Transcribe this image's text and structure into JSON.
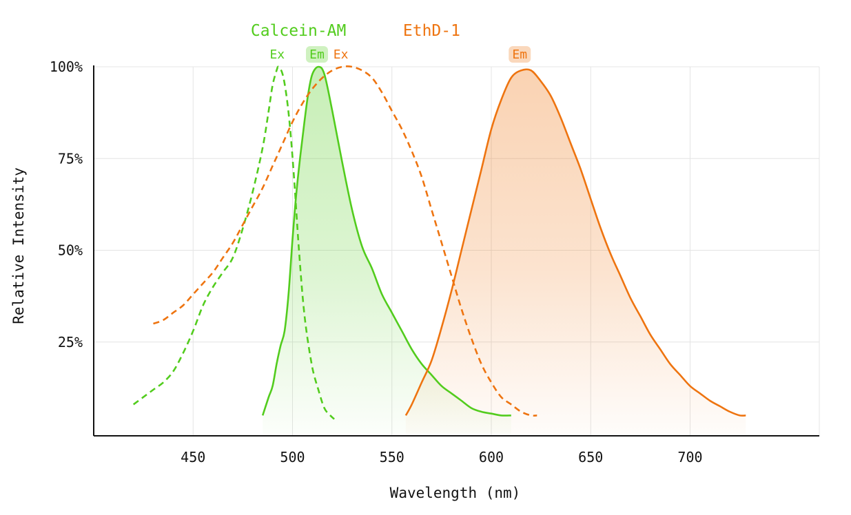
{
  "chart_data": {
    "type": "line",
    "xlabel": "Wavelength (nm)",
    "ylabel": "Relative Intensity",
    "xlim": [
      400,
      765
    ],
    "ylim": [
      0,
      100
    ],
    "x_ticks": [
      450,
      500,
      550,
      600,
      650,
      700
    ],
    "y_ticks": [
      25,
      50,
      75,
      100
    ],
    "y_tick_labels": [
      "25%",
      "50%",
      "75%",
      "100%"
    ],
    "grid": true,
    "dyes": [
      {
        "name": "Calcein-AM",
        "color": "#52cc1d"
      },
      {
        "name": "EthD-1",
        "color": "#ee7410"
      }
    ],
    "series": [
      {
        "dye": "Calcein-AM",
        "label": "Ex",
        "label_highlight": false,
        "color": "#52cc1d",
        "style": "dashed",
        "filled": false,
        "points": [
          [
            420,
            8
          ],
          [
            425,
            10
          ],
          [
            430,
            12
          ],
          [
            435,
            14
          ],
          [
            440,
            17
          ],
          [
            445,
            22
          ],
          [
            450,
            28
          ],
          [
            455,
            35
          ],
          [
            460,
            40
          ],
          [
            465,
            44
          ],
          [
            470,
            48
          ],
          [
            475,
            56
          ],
          [
            480,
            66
          ],
          [
            485,
            78
          ],
          [
            488,
            88
          ],
          [
            490,
            95
          ],
          [
            492,
            99
          ],
          [
            493,
            100
          ],
          [
            495,
            98
          ],
          [
            497,
            92
          ],
          [
            499,
            82
          ],
          [
            501,
            68
          ],
          [
            503,
            52
          ],
          [
            505,
            38
          ],
          [
            507,
            28
          ],
          [
            510,
            18
          ],
          [
            513,
            12
          ],
          [
            516,
            7
          ],
          [
            519,
            5
          ],
          [
            521,
            4
          ]
        ]
      },
      {
        "dye": "Calcein-AM",
        "label": "Em",
        "label_highlight": true,
        "color": "#52cc1d",
        "style": "solid",
        "filled": true,
        "points": [
          [
            485,
            5
          ],
          [
            488,
            10
          ],
          [
            490,
            13
          ],
          [
            492,
            19
          ],
          [
            494,
            24
          ],
          [
            496,
            28
          ],
          [
            498,
            38
          ],
          [
            500,
            53
          ],
          [
            502,
            66
          ],
          [
            504,
            76
          ],
          [
            506,
            85
          ],
          [
            508,
            93
          ],
          [
            510,
            98
          ],
          [
            513,
            100
          ],
          [
            516,
            98
          ],
          [
            520,
            88
          ],
          [
            525,
            74
          ],
          [
            530,
            61
          ],
          [
            535,
            51
          ],
          [
            540,
            45
          ],
          [
            545,
            38
          ],
          [
            550,
            33
          ],
          [
            555,
            28
          ],
          [
            560,
            23
          ],
          [
            565,
            19
          ],
          [
            570,
            16
          ],
          [
            575,
            13
          ],
          [
            580,
            11
          ],
          [
            585,
            9
          ],
          [
            590,
            7
          ],
          [
            595,
            6
          ],
          [
            600,
            5.5
          ],
          [
            605,
            5
          ],
          [
            610,
            5
          ]
        ]
      },
      {
        "dye": "EthD-1",
        "label": "Ex",
        "label_highlight": false,
        "color": "#ee7410",
        "style": "dashed",
        "filled": false,
        "points": [
          [
            430,
            30
          ],
          [
            435,
            31
          ],
          [
            440,
            33
          ],
          [
            445,
            35
          ],
          [
            450,
            38
          ],
          [
            455,
            41
          ],
          [
            460,
            44
          ],
          [
            465,
            48
          ],
          [
            470,
            52
          ],
          [
            475,
            57
          ],
          [
            480,
            62
          ],
          [
            485,
            67
          ],
          [
            490,
            73
          ],
          [
            495,
            79
          ],
          [
            500,
            85
          ],
          [
            505,
            90
          ],
          [
            510,
            94
          ],
          [
            515,
            97
          ],
          [
            520,
            99
          ],
          [
            525,
            100
          ],
          [
            530,
            100
          ],
          [
            535,
            99
          ],
          [
            540,
            97
          ],
          [
            545,
            93
          ],
          [
            550,
            88
          ],
          [
            555,
            83
          ],
          [
            560,
            77
          ],
          [
            565,
            70
          ],
          [
            570,
            61
          ],
          [
            575,
            52
          ],
          [
            580,
            43
          ],
          [
            585,
            34
          ],
          [
            590,
            26
          ],
          [
            595,
            19
          ],
          [
            600,
            14
          ],
          [
            605,
            10
          ],
          [
            610,
            8
          ],
          [
            615,
            6
          ],
          [
            620,
            5
          ],
          [
            623,
            5
          ]
        ]
      },
      {
        "dye": "EthD-1",
        "label": "Em",
        "label_highlight": true,
        "color": "#ee7410",
        "style": "solid",
        "filled": true,
        "points": [
          [
            557,
            5
          ],
          [
            560,
            8
          ],
          [
            565,
            14
          ],
          [
            570,
            20
          ],
          [
            575,
            29
          ],
          [
            580,
            39
          ],
          [
            585,
            50
          ],
          [
            590,
            61
          ],
          [
            595,
            72
          ],
          [
            600,
            83
          ],
          [
            605,
            91
          ],
          [
            610,
            97
          ],
          [
            615,
            99
          ],
          [
            620,
            99
          ],
          [
            625,
            96
          ],
          [
            630,
            92
          ],
          [
            635,
            86
          ],
          [
            640,
            79
          ],
          [
            645,
            72
          ],
          [
            650,
            64
          ],
          [
            655,
            56
          ],
          [
            660,
            49
          ],
          [
            665,
            43
          ],
          [
            670,
            37
          ],
          [
            675,
            32
          ],
          [
            680,
            27
          ],
          [
            685,
            23
          ],
          [
            690,
            19
          ],
          [
            695,
            16
          ],
          [
            700,
            13
          ],
          [
            705,
            11
          ],
          [
            710,
            9
          ],
          [
            715,
            7.5
          ],
          [
            720,
            6
          ],
          [
            725,
            5
          ],
          [
            728,
            5
          ]
        ]
      }
    ]
  }
}
